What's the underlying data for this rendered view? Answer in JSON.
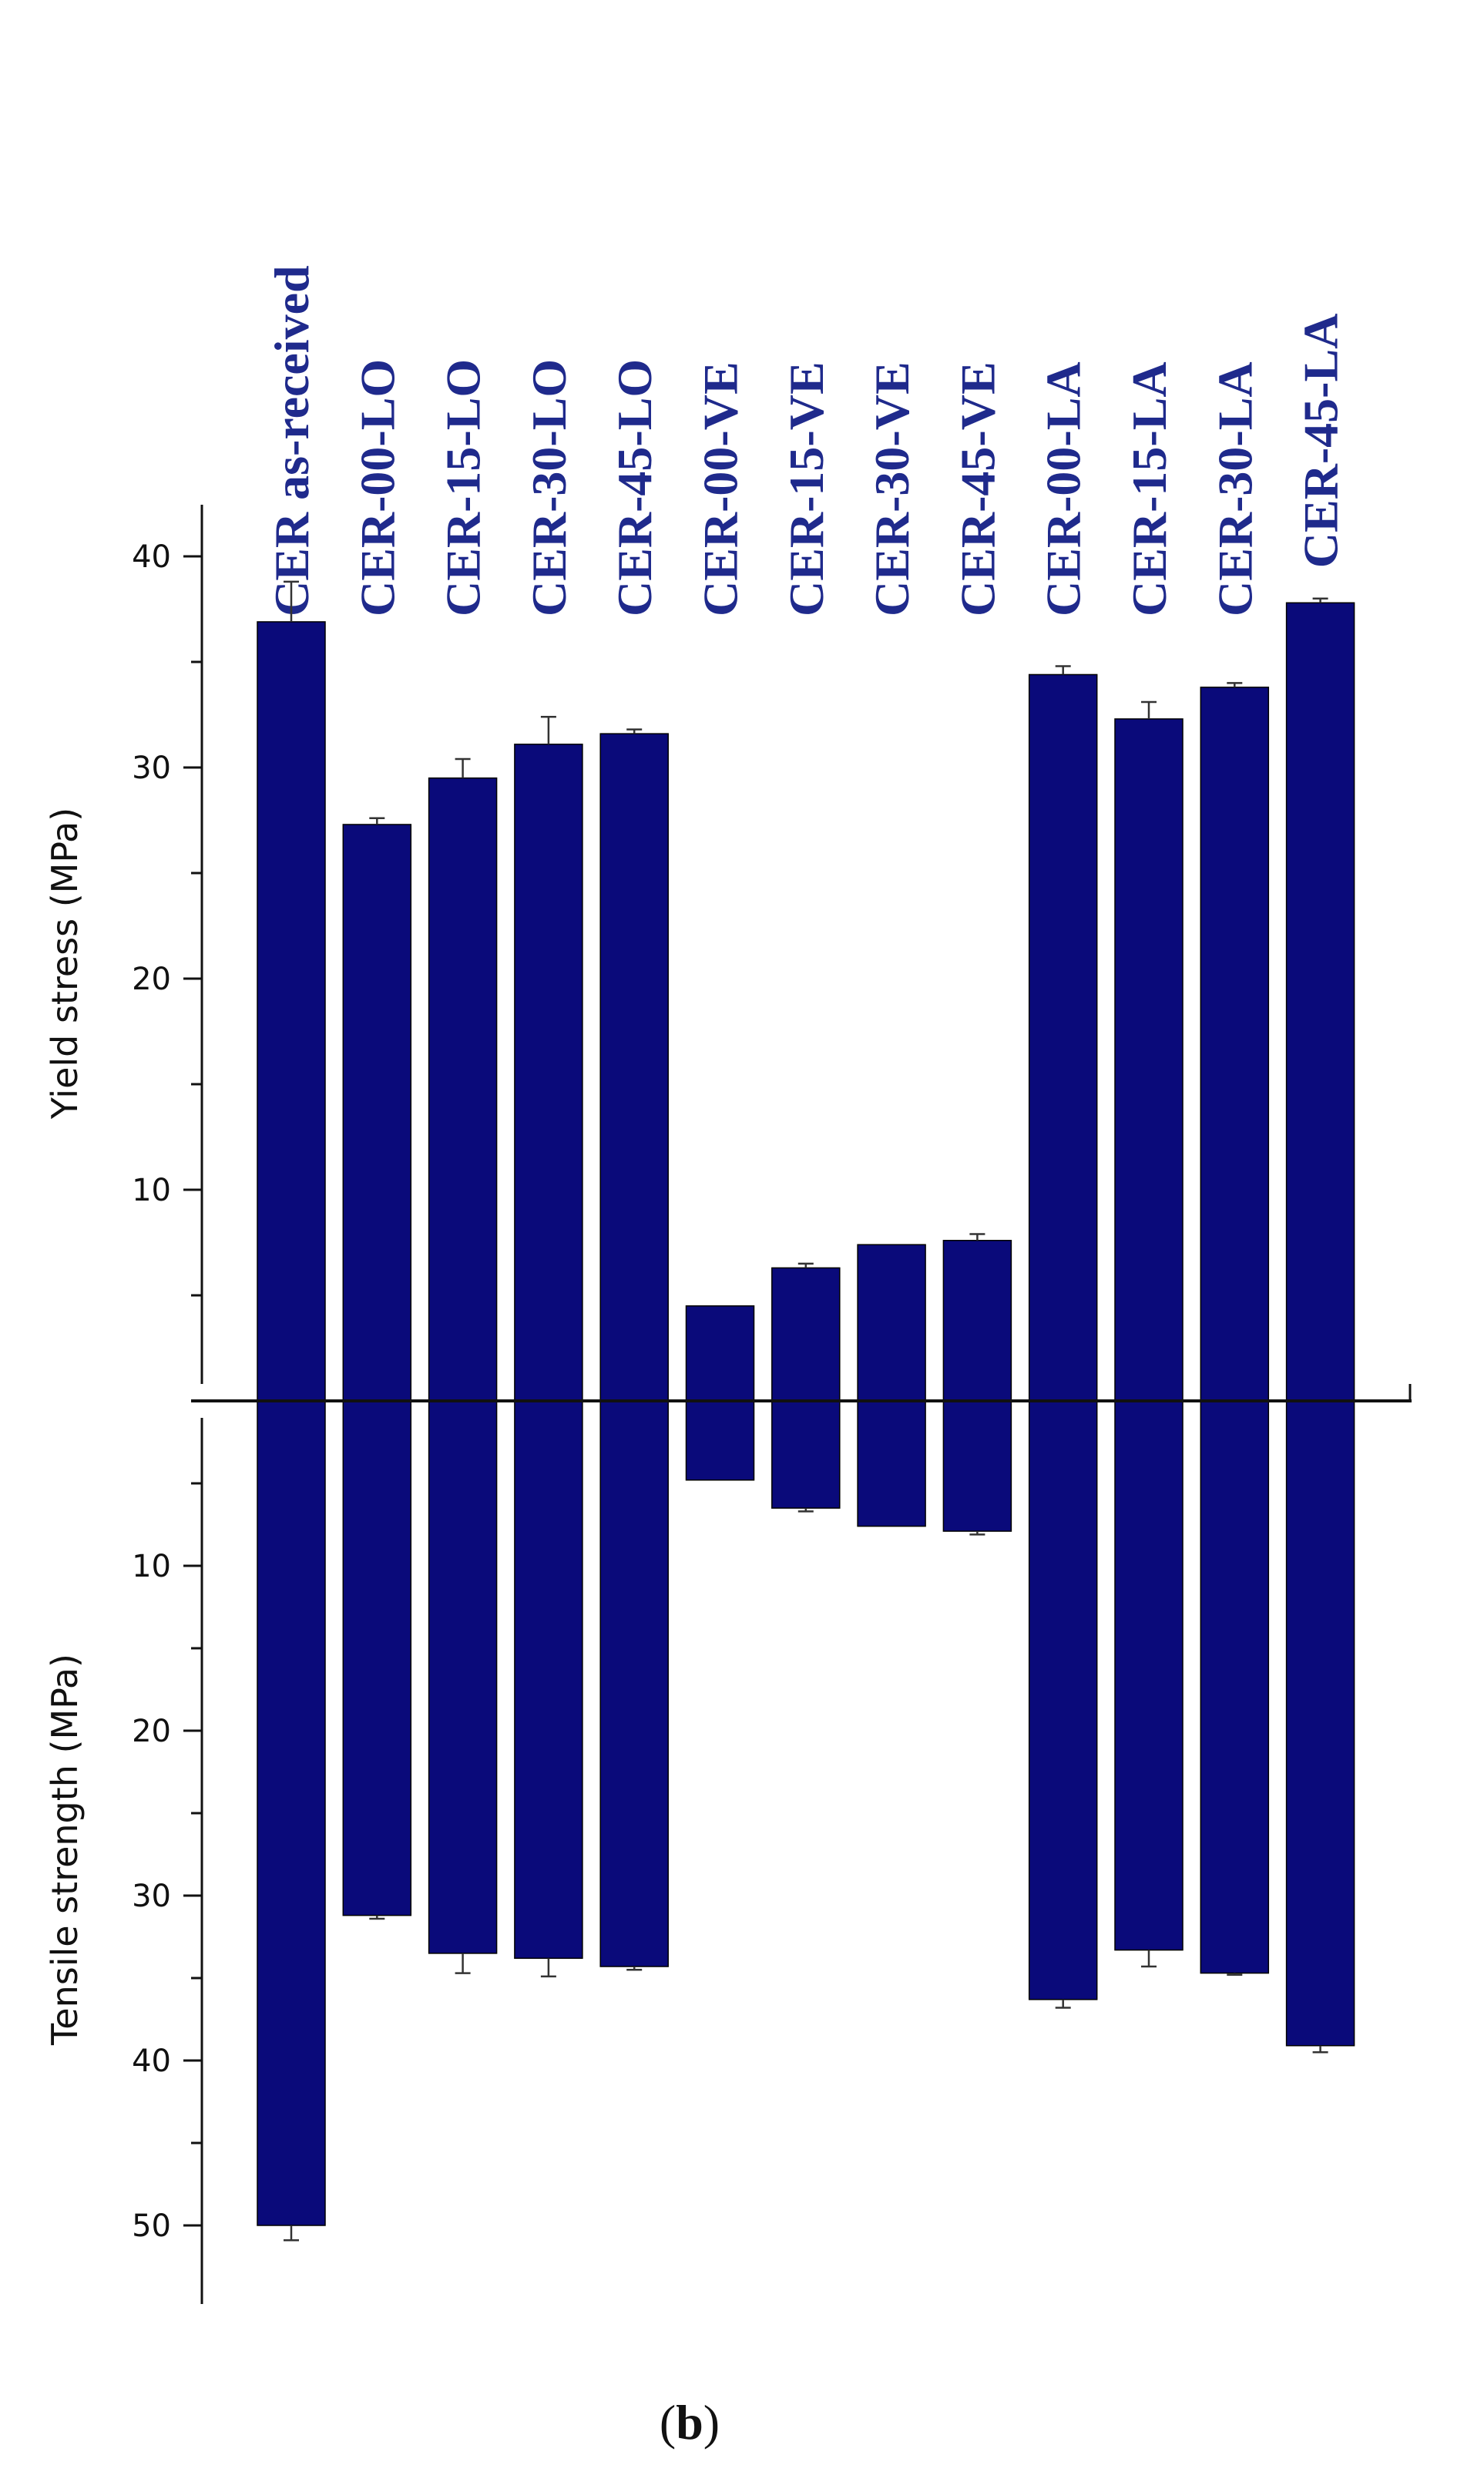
{
  "chart_data": {
    "type": "bar",
    "categories": [
      "CER as-received",
      "CER-00-LO",
      "CER-15-LO",
      "CER-30-LO",
      "CER-45-LO",
      "CER-00-VE",
      "CER-15-VE",
      "CER-30-VE",
      "CER-45-VE",
      "CER-00-LA",
      "CER-15-LA",
      "CER-30-LA",
      "CER-45-LA"
    ],
    "series": [
      {
        "values": [
          36.9,
          27.3,
          29.5,
          31.1,
          31.6,
          4.5,
          6.3,
          7.4,
          7.6,
          34.4,
          32.3,
          33.8,
          37.8
        ],
        "errors": [
          1.9,
          0.3,
          0.9,
          1.3,
          0.2,
          0.0,
          0.2,
          0.0,
          0.3,
          0.4,
          0.8,
          0.2,
          0.2
        ]
      },
      {
        "values": [
          50.0,
          31.2,
          33.5,
          33.8,
          34.3,
          4.8,
          6.5,
          7.6,
          7.9,
          36.3,
          33.3,
          34.7,
          39.1
        ],
        "errors": [
          0.9,
          0.2,
          1.2,
          1.1,
          0.2,
          0.0,
          0.2,
          0.0,
          0.2,
          0.5,
          1.0,
          0.1,
          0.4
        ]
      }
    ],
    "top_axis": {
      "title": "Yield stress (MPa)",
      "ticks": [
        "10",
        "20",
        "30",
        "40"
      ],
      "tick_values": [
        10,
        20,
        30,
        40
      ],
      "ylim": [
        0,
        42
      ]
    },
    "bottom_axis": {
      "title": "Tensile strength (MPa)",
      "ticks": [
        "10",
        "20",
        "30",
        "40",
        "50"
      ],
      "tick_values": [
        10,
        20,
        30,
        40,
        50
      ],
      "ylim": [
        0,
        55
      ]
    },
    "bar_color": "#0a0a7a",
    "label_color": "#1f2a8c",
    "grid": false,
    "panel_label": {
      "open": "(",
      "letter": "b",
      "close": ")"
    }
  }
}
